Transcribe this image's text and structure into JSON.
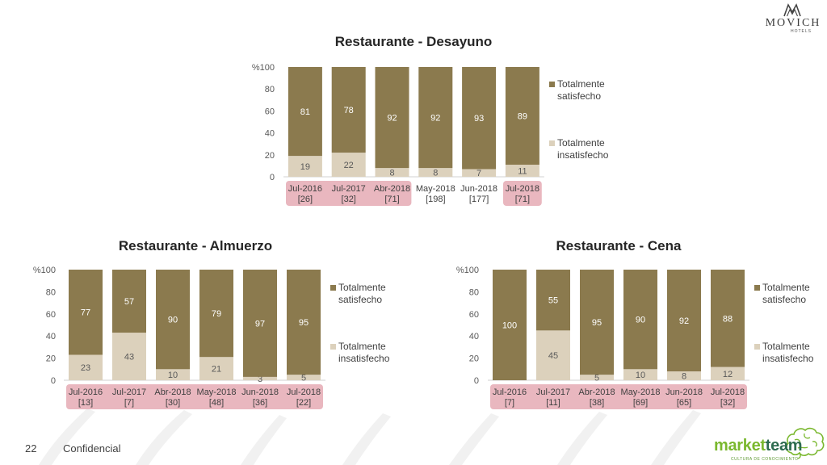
{
  "header": {
    "logo_brand": "MOVICH",
    "logo_sub": "HOTELS"
  },
  "colors": {
    "satisfied": "#8b7a4e",
    "unsatisfied": "#dcd1bc",
    "highlight": "#e9b7bf"
  },
  "chart_data": [
    {
      "type": "bar",
      "stacked": true,
      "title": "Restaurante - Desayuno",
      "categories": [
        "Jul-2016",
        "Jul-2017",
        "Abr-2018",
        "May-2018",
        "Jun-2018",
        "Jul-2018"
      ],
      "category_counts": [
        "[26]",
        "[32]",
        "[71]",
        "[198]",
        "[177]",
        "[71]"
      ],
      "highlighted": [
        true,
        true,
        true,
        false,
        false,
        true
      ],
      "ylim": [
        0,
        100
      ],
      "yticks": [
        0,
        20,
        40,
        60,
        80,
        100
      ],
      "ytick_labels": [
        "0",
        "20",
        "40",
        "60",
        "80",
        "%100"
      ],
      "grid": false,
      "legend_position": "right",
      "series": [
        {
          "name": "Totalmente insatisfecho",
          "values": [
            19,
            22,
            8,
            8,
            7,
            11
          ]
        },
        {
          "name": "Totalmente satisfecho",
          "values": [
            81,
            78,
            92,
            92,
            93,
            89
          ]
        }
      ]
    },
    {
      "type": "bar",
      "stacked": true,
      "title": "Restaurante - Almuerzo",
      "categories": [
        "Jul-2016",
        "Jul-2017",
        "Abr-2018",
        "May-2018",
        "Jun-2018",
        "Jul-2018"
      ],
      "category_counts": [
        "[13]",
        "[7]",
        "[30]",
        "[48]",
        "[36]",
        "[22]"
      ],
      "highlighted": [
        true,
        true,
        true,
        true,
        true,
        true
      ],
      "ylim": [
        0,
        100
      ],
      "yticks": [
        0,
        20,
        40,
        60,
        80,
        100
      ],
      "ytick_labels": [
        "0",
        "20",
        "40",
        "60",
        "80",
        "%100"
      ],
      "grid": false,
      "legend_position": "right",
      "series": [
        {
          "name": "Totalmente insatisfecho",
          "values": [
            23,
            43,
            10,
            21,
            3,
            5
          ]
        },
        {
          "name": "Totalmente satisfecho",
          "values": [
            77,
            57,
            90,
            79,
            97,
            95
          ]
        }
      ]
    },
    {
      "type": "bar",
      "stacked": true,
      "title": "Restaurante - Cena",
      "categories": [
        "Jul-2016",
        "Jul-2017",
        "Abr-2018",
        "May-2018",
        "Jun-2018",
        "Jul-2018"
      ],
      "category_counts": [
        "[7]",
        "[11]",
        "[38]",
        "[69]",
        "[65]",
        "[32]"
      ],
      "highlighted": [
        true,
        true,
        true,
        true,
        true,
        true
      ],
      "ylim": [
        0,
        100
      ],
      "yticks": [
        0,
        20,
        40,
        60,
        80,
        100
      ],
      "ytick_labels": [
        "0",
        "20",
        "40",
        "60",
        "80",
        "%100"
      ],
      "grid": false,
      "legend_position": "right",
      "series": [
        {
          "name": "Totalmente insatisfecho",
          "values": [
            0,
            45,
            5,
            10,
            8,
            12
          ]
        },
        {
          "name": "Totalmente satisfecho",
          "values": [
            100,
            55,
            95,
            90,
            92,
            88
          ]
        }
      ]
    }
  ],
  "footer": {
    "page_number": "22",
    "label": "Confidencial"
  },
  "partner_logo": {
    "brand_a": "market",
    "brand_b": "team",
    "tagline": "CULTURA DE CONOCIMIENTO"
  }
}
